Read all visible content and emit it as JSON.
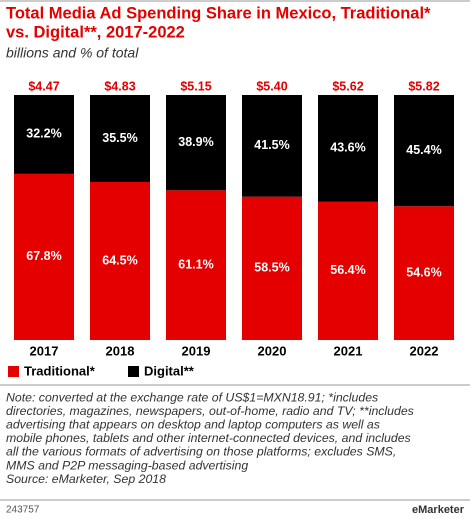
{
  "chart_data": {
    "type": "stacked_bar",
    "title": [
      "Total Media Ad Spending Share in Mexico, Traditional*",
      "vs. Digital**, 2017-2022"
    ],
    "subtitle": "billions and % of total",
    "categories": [
      "2017",
      "2018",
      "2019",
      "2020",
      "2021",
      "2022"
    ],
    "series": [
      {
        "name": "Traditional*",
        "color": "#e50000",
        "values": [
          67.8,
          64.5,
          61.1,
          58.5,
          56.4,
          54.6
        ],
        "value_labels": [
          "67.8%",
          "64.5%",
          "61.1%",
          "58.5%",
          "56.4%",
          "54.6%"
        ]
      },
      {
        "name": "Digital**",
        "color": "#000000",
        "values": [
          32.2,
          35.5,
          38.9,
          41.5,
          43.6,
          45.4
        ],
        "value_labels": [
          "32.2%",
          "35.5%",
          "38.9%",
          "41.5%",
          "43.6%",
          "45.4%"
        ]
      }
    ],
    "totals": {
      "color": "#e50000",
      "values": [
        4.47,
        4.83,
        5.15,
        5.4,
        5.62,
        5.82
      ],
      "value_labels": [
        "$4.47",
        "$4.83",
        "$5.15",
        "$5.40",
        "$5.62",
        "$5.82"
      ]
    },
    "note": [
      "Note: converted at the exchange rate of US$1=MXN18.91; *includes",
      "directories, magazines, newspapers, out-of-home, radio and TV; **includes",
      "advertising that appears on desktop and laptop computers as well as",
      "mobile phones, tablets and other internet-connected devices, and includes",
      "all the various formats of advertising on those platforms; excludes SMS,",
      "MMS and P2P messaging-based advertising"
    ],
    "source": "Source: eMarketer, Sep 2018",
    "chart_id": "243757",
    "brand": "eMarketer"
  }
}
